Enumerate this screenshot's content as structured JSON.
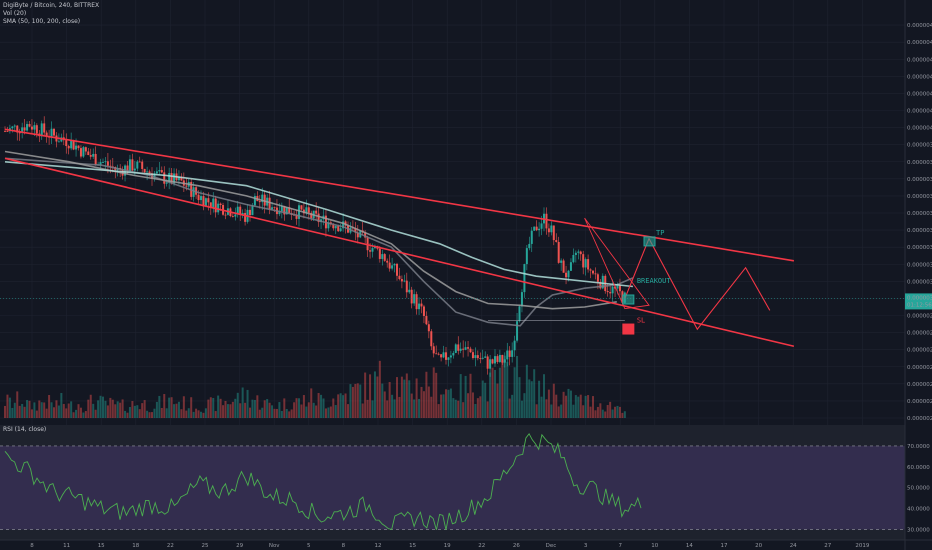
{
  "header": {
    "symbol_line": "DigiByte / Bitcoin, 240, BITTREX",
    "vol_line": "Vol (20)",
    "sma_line": "SMA (50, 100, 200, close)",
    "rsi_line": "RSI (14, close)"
  },
  "chart_data": {
    "type": "candlestick",
    "price_axis": {
      "ylim": [
        2.3e-06,
        4.7e-06
      ],
      "ticks": [
        "0.00000460",
        "0.00000450",
        "0.00000440",
        "0.00000430",
        "0.00000420",
        "0.00000410",
        "0.00000400",
        "0.00000390",
        "0.00000380",
        "0.00000370",
        "0.00000360",
        "0.00000350",
        "0.00000340",
        "0.00000330",
        "0.00000320",
        "0.00000310",
        "0.00000300",
        "0.00000290",
        "0.00000280",
        "0.00000270",
        "0.00000260",
        "0.00000250",
        "0.00000240",
        "0.00000230"
      ],
      "last_price_label": "0.00000300",
      "countdown_label": "01:12:56"
    },
    "rsi_axis": {
      "ylim": [
        25,
        80
      ],
      "ticks": [
        "70.0000",
        "60.0000",
        "50.0000",
        "40.0000",
        "30.0000"
      ],
      "upper_band": 70,
      "lower_band": 30
    },
    "x_ticks": [
      "8",
      "11",
      "15",
      "18",
      "22",
      "25",
      "29",
      "Nov",
      "5",
      "8",
      "12",
      "15",
      "19",
      "22",
      "26",
      "Dec",
      "3",
      "7",
      "10",
      "14",
      "17",
      "20",
      "24",
      "27",
      "2019"
    ],
    "price_path": [
      [
        0,
        3.98
      ],
      [
        3,
        4.02
      ],
      [
        6,
        3.95
      ],
      [
        8,
        3.92
      ],
      [
        10,
        3.85
      ],
      [
        12,
        3.8
      ],
      [
        14,
        3.75
      ],
      [
        16,
        3.78
      ],
      [
        18,
        3.74
      ],
      [
        20,
        3.7
      ],
      [
        22,
        3.68
      ],
      [
        24,
        3.6
      ],
      [
        26,
        3.55
      ],
      [
        28,
        3.52
      ],
      [
        30,
        3.48
      ],
      [
        31,
        3.58
      ],
      [
        33,
        3.55
      ],
      [
        35,
        3.52
      ],
      [
        37,
        3.5
      ],
      [
        39,
        3.46
      ],
      [
        41,
        3.44
      ],
      [
        43,
        3.4
      ],
      [
        45,
        3.32
      ],
      [
        47,
        3.25
      ],
      [
        49,
        3.12
      ],
      [
        51,
        2.98
      ],
      [
        52,
        2.9
      ],
      [
        53,
        2.7
      ],
      [
        54,
        2.62
      ],
      [
        56,
        2.72
      ],
      [
        58,
        2.68
      ],
      [
        60,
        2.62
      ],
      [
        62,
        2.64
      ],
      [
        63,
        2.7
      ],
      [
        64,
        3.02
      ],
      [
        65,
        3.3
      ],
      [
        66,
        3.42
      ],
      [
        67,
        3.47
      ],
      [
        68,
        3.38
      ],
      [
        69,
        3.2
      ],
      [
        70,
        3.12
      ],
      [
        71,
        3.28
      ],
      [
        72,
        3.2
      ],
      [
        73,
        3.15
      ],
      [
        74,
        3.1
      ],
      [
        75,
        3.06
      ],
      [
        76,
        3.04
      ],
      [
        77,
        3.0
      ]
    ],
    "candle_bars": 254,
    "volume_profile": [
      0.3,
      0.25,
      0.35,
      0.2,
      0.25,
      0.3,
      0.22,
      0.28,
      0.2,
      0.25,
      0.22,
      0.3,
      0.26,
      0.24,
      0.22,
      0.2,
      0.24,
      0.26,
      0.22,
      0.25,
      0.28,
      0.3,
      0.26,
      0.24,
      0.2,
      0.22,
      0.24,
      0.28,
      0.3,
      0.35,
      0.4,
      0.32,
      0.26,
      0.24,
      0.22,
      0.25,
      0.28,
      0.3,
      0.35,
      0.32,
      0.3,
      0.36,
      0.4,
      0.45,
      0.5,
      0.55,
      0.6,
      0.75,
      0.7,
      0.58,
      0.5,
      0.55,
      0.62,
      0.6,
      0.55,
      0.5,
      0.48,
      0.5,
      0.55,
      0.6,
      0.52,
      0.65,
      0.72,
      0.8,
      0.7,
      0.62,
      0.55,
      0.5,
      0.45,
      0.4,
      0.35,
      0.32,
      0.3,
      0.28,
      0.25,
      0.22,
      0.2,
      0.18
    ],
    "sma": [
      {
        "period": 50,
        "path": [
          [
            0,
            3.82
          ],
          [
            6,
            3.8
          ],
          [
            12,
            3.78
          ],
          [
            18,
            3.72
          ],
          [
            24,
            3.62
          ],
          [
            30,
            3.55
          ],
          [
            36,
            3.49
          ],
          [
            42,
            3.42
          ],
          [
            48,
            3.3
          ],
          [
            52,
            3.1
          ],
          [
            56,
            2.92
          ],
          [
            60,
            2.86
          ],
          [
            64,
            2.84
          ],
          [
            66,
            2.95
          ],
          [
            68,
            3.02
          ],
          [
            72,
            3.06
          ],
          [
            76,
            3.08
          ],
          [
            78,
            3.12
          ]
        ]
      },
      {
        "period": 100,
        "path": [
          [
            0,
            3.86
          ],
          [
            8,
            3.8
          ],
          [
            16,
            3.72
          ],
          [
            24,
            3.66
          ],
          [
            30,
            3.6
          ],
          [
            36,
            3.52
          ],
          [
            42,
            3.44
          ],
          [
            48,
            3.32
          ],
          [
            52,
            3.16
          ],
          [
            56,
            3.04
          ],
          [
            60,
            2.97
          ],
          [
            64,
            2.96
          ],
          [
            68,
            2.94
          ],
          [
            72,
            2.95
          ],
          [
            76,
            2.98
          ]
        ]
      },
      {
        "period": 200,
        "path": [
          [
            0,
            3.8
          ],
          [
            10,
            3.76
          ],
          [
            20,
            3.72
          ],
          [
            30,
            3.66
          ],
          [
            40,
            3.52
          ],
          [
            48,
            3.4
          ],
          [
            54,
            3.32
          ],
          [
            58,
            3.24
          ],
          [
            62,
            3.17
          ],
          [
            66,
            3.13
          ],
          [
            70,
            3.11
          ],
          [
            74,
            3.09
          ],
          [
            78,
            3.07
          ]
        ]
      }
    ],
    "rsi_path": [
      [
        0,
        65
      ],
      [
        3,
        58
      ],
      [
        6,
        48
      ],
      [
        9,
        45
      ],
      [
        12,
        40
      ],
      [
        15,
        38
      ],
      [
        18,
        42
      ],
      [
        21,
        40
      ],
      [
        24,
        52
      ],
      [
        27,
        48
      ],
      [
        30,
        56
      ],
      [
        33,
        46
      ],
      [
        36,
        44
      ],
      [
        39,
        36
      ],
      [
        42,
        38
      ],
      [
        45,
        42
      ],
      [
        48,
        32
      ],
      [
        51,
        36
      ],
      [
        54,
        33
      ],
      [
        57,
        38
      ],
      [
        60,
        46
      ],
      [
        63,
        62
      ],
      [
        65,
        74
      ],
      [
        67,
        72
      ],
      [
        69,
        66
      ],
      [
        71,
        52
      ],
      [
        73,
        50
      ],
      [
        75,
        44
      ],
      [
        77,
        40
      ],
      [
        79,
        42
      ]
    ],
    "trendlines": [
      {
        "color": "#f23645",
        "points": [
          [
            0,
            3.99
          ],
          [
            98,
            3.22
          ]
        ]
      },
      {
        "color": "#f23645",
        "points": [
          [
            0,
            3.82
          ],
          [
            98,
            2.72
          ]
        ]
      }
    ],
    "projection": {
      "color": "#f23645",
      "points": [
        [
          77,
          3.0
        ],
        [
          80,
          3.35
        ],
        [
          86,
          2.82
        ],
        [
          92,
          3.18
        ],
        [
          95,
          2.93
        ]
      ]
    },
    "annotations": [
      {
        "label": "TP",
        "color": "#26a69a"
      },
      {
        "label": "BREAKOUT",
        "color": "#26a69a"
      },
      {
        "label": "SL",
        "color": "#f23645"
      }
    ]
  }
}
